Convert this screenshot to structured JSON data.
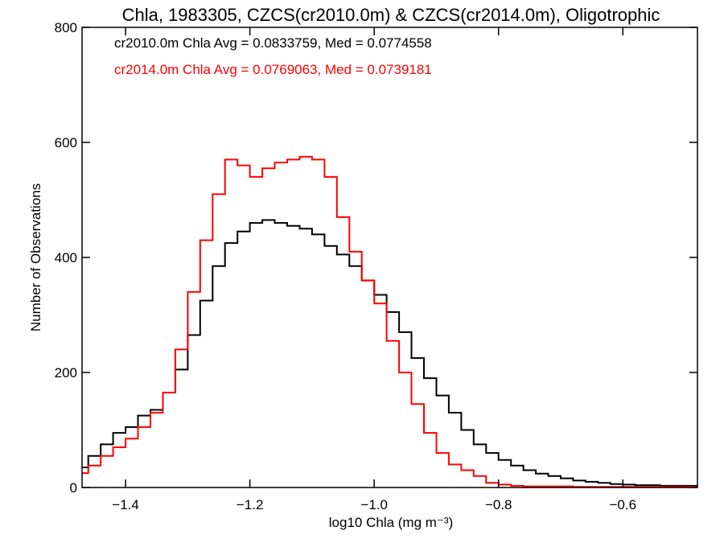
{
  "chart_data": {
    "type": "line",
    "step": true,
    "title": "Chla, 1983305, CZCS(cr2010.0m) & CZCS(cr2014.0m), Oligotrophic",
    "xlabel": "log10 Chla (mg m⁻³)",
    "ylabel": "Number of Observations",
    "xlim": [
      -1.47,
      -0.48
    ],
    "ylim": [
      0,
      800
    ],
    "x_ticks": [
      -1.4,
      -1.2,
      -1.0,
      -0.8,
      -0.6
    ],
    "x_tick_labels": [
      "−1.4",
      "−1.2",
      "−1.0",
      "−0.8",
      "−0.6"
    ],
    "y_ticks": [
      0,
      200,
      400,
      600,
      800
    ],
    "y_tick_labels": [
      "0",
      "200",
      "400",
      "600",
      "800"
    ],
    "grid": false,
    "legend_placement": "top-left",
    "annotations": [
      {
        "text": "cr2010.0m Chla Avg = 0.0833759, Med = 0.0774558",
        "color": "#000000"
      },
      {
        "text": "cr2014.0m Chla Avg = 0.0769063, Med = 0.0739181",
        "color": "#ff0000"
      }
    ],
    "series": [
      {
        "color": "#000000",
        "x": [
          -1.47,
          -1.45,
          -1.43,
          -1.41,
          -1.39,
          -1.37,
          -1.35,
          -1.33,
          -1.31,
          -1.29,
          -1.27,
          -1.25,
          -1.23,
          -1.21,
          -1.19,
          -1.17,
          -1.15,
          -1.13,
          -1.11,
          -1.09,
          -1.07,
          -1.05,
          -1.03,
          -1.01,
          -0.99,
          -0.97,
          -0.95,
          -0.93,
          -0.91,
          -0.89,
          -0.87,
          -0.85,
          -0.83,
          -0.81,
          -0.79,
          -0.77,
          -0.75,
          -0.73,
          -0.71,
          -0.69,
          -0.67,
          -0.65,
          -0.63,
          -0.61,
          -0.59,
          -0.57,
          -0.55,
          -0.53,
          -0.51,
          -0.49
        ],
        "y": [
          35,
          55,
          75,
          95,
          105,
          125,
          135,
          165,
          205,
          265,
          325,
          385,
          425,
          445,
          460,
          465,
          460,
          455,
          450,
          440,
          420,
          405,
          385,
          360,
          335,
          305,
          270,
          225,
          190,
          160,
          130,
          100,
          75,
          60,
          48,
          38,
          30,
          24,
          20,
          16,
          12,
          10,
          8,
          6,
          5,
          4,
          4,
          3,
          3,
          3
        ]
      },
      {
        "color": "#ff0000",
        "x": [
          -1.47,
          -1.45,
          -1.43,
          -1.41,
          -1.39,
          -1.37,
          -1.35,
          -1.33,
          -1.31,
          -1.29,
          -1.27,
          -1.25,
          -1.23,
          -1.21,
          -1.19,
          -1.17,
          -1.15,
          -1.13,
          -1.11,
          -1.09,
          -1.07,
          -1.05,
          -1.03,
          -1.01,
          -0.99,
          -0.97,
          -0.95,
          -0.93,
          -0.91,
          -0.89,
          -0.87,
          -0.85,
          -0.83,
          -0.81,
          -0.79,
          -0.77,
          -0.75,
          -0.73,
          -0.71,
          -0.69,
          -0.67,
          -0.65,
          -0.63,
          -0.61,
          -0.59,
          -0.57,
          -0.55,
          -0.53,
          -0.51,
          -0.49
        ],
        "y": [
          25,
          38,
          55,
          70,
          85,
          105,
          130,
          165,
          240,
          340,
          430,
          510,
          570,
          560,
          540,
          555,
          565,
          570,
          575,
          570,
          540,
          470,
          410,
          360,
          320,
          255,
          200,
          145,
          95,
          60,
          40,
          30,
          20,
          8,
          5,
          3,
          2,
          2,
          2,
          2,
          1,
          1,
          1,
          1,
          1,
          1,
          1,
          1,
          1,
          1
        ]
      }
    ]
  }
}
